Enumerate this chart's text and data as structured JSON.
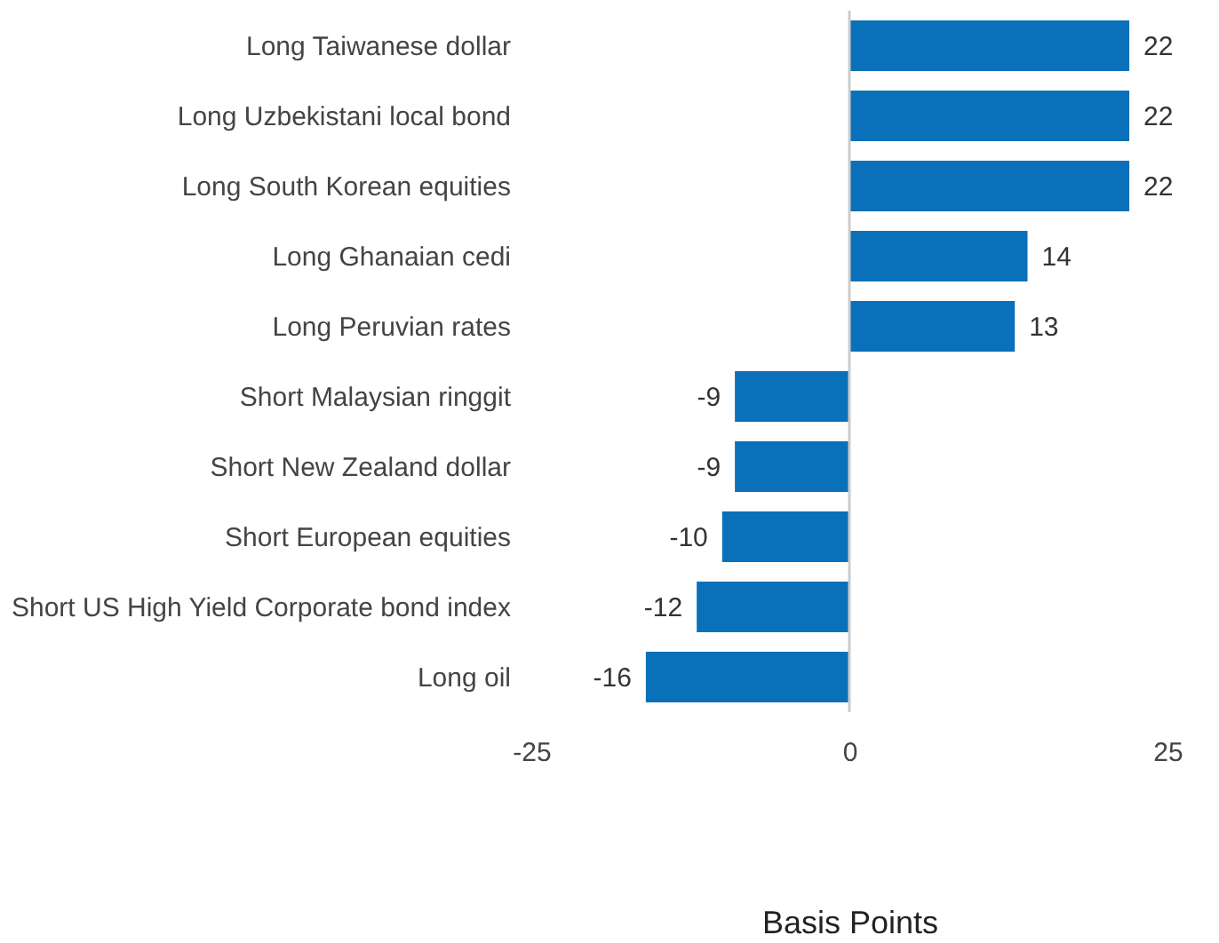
{
  "chart_data": {
    "type": "bar",
    "orientation": "horizontal",
    "xlabel": "Basis Points",
    "categories": [
      "Long Taiwanese dollar",
      "Long Uzbekistani local bond",
      "Long South Korean equities",
      "Long Ghanaian cedi",
      "Long Peruvian rates",
      "Short Malaysian ringgit",
      "Short New Zealand dollar",
      "Short European equities",
      "Short US High Yield Corporate bond index",
      "Long oil"
    ],
    "values": [
      22,
      22,
      22,
      14,
      13,
      -9,
      -9,
      -10,
      -12,
      -16
    ],
    "color": "#0a70b9",
    "xlim": [
      -25,
      25
    ],
    "xticks": [
      -25,
      0,
      25
    ],
    "ref_lines": [
      {
        "axis": "x",
        "value": 0,
        "color": "#cccccc"
      }
    ],
    "data_labels": true,
    "grid": false
  }
}
